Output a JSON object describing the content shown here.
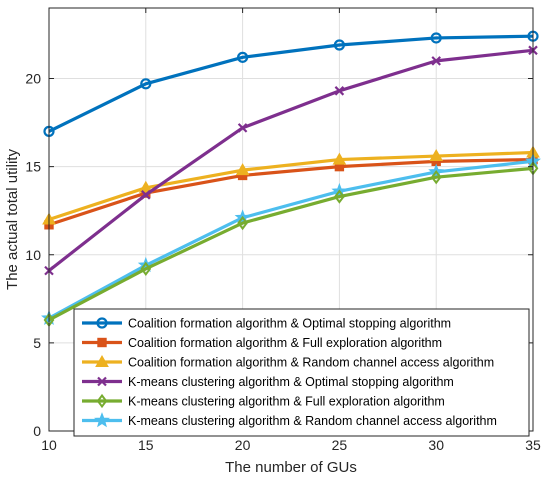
{
  "chart_data": {
    "type": "line",
    "xlabel": "The number of GUs",
    "ylabel": "The actual total utility",
    "xlim": [
      10,
      35
    ],
    "ylim": [
      0,
      24
    ],
    "xticks": [
      10,
      15,
      20,
      25,
      30,
      35
    ],
    "yticks": [
      0,
      5,
      10,
      15,
      20
    ],
    "grid": true,
    "legend_position": "bottom-right",
    "x": [
      10,
      15,
      20,
      25,
      30,
      35
    ],
    "series": [
      {
        "name": "Coalition formation algorithm & Optimal stopping algorithm",
        "color": "#0072BD",
        "marker": "circle",
        "values": [
          17.0,
          19.7,
          21.2,
          21.9,
          22.3,
          22.4
        ]
      },
      {
        "name": "Coalition formation algorithm & Full exploration algorithm",
        "color": "#D95319",
        "marker": "square",
        "values": [
          11.7,
          13.5,
          14.5,
          15.0,
          15.3,
          15.4
        ]
      },
      {
        "name": "Coalition formation algorithm & Random channel access algorithm",
        "color": "#EDB120",
        "marker": "triangle",
        "values": [
          12.0,
          13.8,
          14.8,
          15.4,
          15.6,
          15.8
        ]
      },
      {
        "name": "K-means clustering algorithm & Optimal stopping algorithm",
        "color": "#7E2F8E",
        "marker": "x",
        "values": [
          9.1,
          13.4,
          17.2,
          19.3,
          21.0,
          21.6
        ]
      },
      {
        "name": "K-means clustering algorithm & Full exploration algorithm",
        "color": "#77AC30",
        "marker": "diamond",
        "values": [
          6.3,
          9.2,
          11.8,
          13.3,
          14.4,
          14.9
        ]
      },
      {
        "name": "K-means clustering algorithm & Random channel access algorithm",
        "color": "#4DBEEE",
        "marker": "star",
        "values": [
          6.4,
          9.4,
          12.1,
          13.6,
          14.7,
          15.3
        ]
      }
    ]
  }
}
